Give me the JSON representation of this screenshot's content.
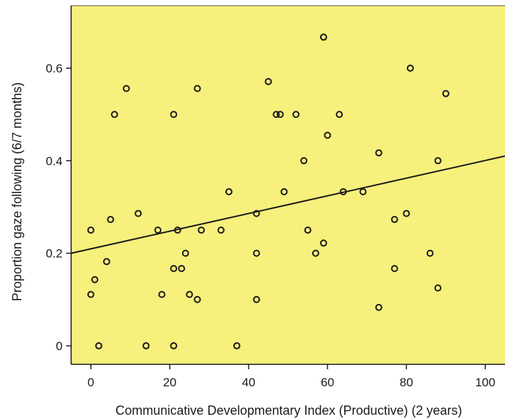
{
  "chart_data": {
    "type": "scatter",
    "title": "",
    "xlabel": "Communicative Developmentary Index (Productive) (2 years)",
    "ylabel": "Proportion gaze following (6/7 months)",
    "xlim": [
      -5,
      105
    ],
    "ylim": [
      -0.04,
      0.735
    ],
    "xticks": [
      0,
      20,
      40,
      60,
      80,
      100
    ],
    "yticks": [
      0,
      0.2,
      0.4,
      0.6
    ],
    "xtick_labels": [
      "0",
      "20",
      "40",
      "60",
      "80",
      "100"
    ],
    "ytick_labels": [
      "0",
      "0.2",
      "0.4",
      "0.6"
    ],
    "grid": false,
    "background_color": "#f7f07c",
    "point_color": "#1a1a1a",
    "points": [
      {
        "x": 0,
        "y": 0.25
      },
      {
        "x": 0,
        "y": 0.111
      },
      {
        "x": 1,
        "y": 0.143
      },
      {
        "x": 2,
        "y": 0
      },
      {
        "x": 4,
        "y": 0.182
      },
      {
        "x": 5,
        "y": 0.273
      },
      {
        "x": 6,
        "y": 0.5
      },
      {
        "x": 9,
        "y": 0.556
      },
      {
        "x": 12,
        "y": 0.286
      },
      {
        "x": 14,
        "y": 0
      },
      {
        "x": 17,
        "y": 0.25
      },
      {
        "x": 18,
        "y": 0.111
      },
      {
        "x": 21,
        "y": 0.5
      },
      {
        "x": 21,
        "y": 0.167
      },
      {
        "x": 21,
        "y": 0
      },
      {
        "x": 22,
        "y": 0.25
      },
      {
        "x": 23,
        "y": 0.167
      },
      {
        "x": 24,
        "y": 0.2
      },
      {
        "x": 25,
        "y": 0.111
      },
      {
        "x": 27,
        "y": 0.556
      },
      {
        "x": 27,
        "y": 0.1
      },
      {
        "x": 28,
        "y": 0.25
      },
      {
        "x": 33,
        "y": 0.25
      },
      {
        "x": 35,
        "y": 0.333
      },
      {
        "x": 37,
        "y": 0
      },
      {
        "x": 42,
        "y": 0.286
      },
      {
        "x": 42,
        "y": 0.2
      },
      {
        "x": 42,
        "y": 0.1
      },
      {
        "x": 45,
        "y": 0.571
      },
      {
        "x": 47,
        "y": 0.5
      },
      {
        "x": 48,
        "y": 0.5
      },
      {
        "x": 49,
        "y": 0.333
      },
      {
        "x": 52,
        "y": 0.5
      },
      {
        "x": 54,
        "y": 0.4
      },
      {
        "x": 55,
        "y": 0.25
      },
      {
        "x": 57,
        "y": 0.2
      },
      {
        "x": 59,
        "y": 0.667
      },
      {
        "x": 59,
        "y": 0.222
      },
      {
        "x": 60,
        "y": 0.455
      },
      {
        "x": 63,
        "y": 0.5
      },
      {
        "x": 64,
        "y": 0.333
      },
      {
        "x": 69,
        "y": 0.333
      },
      {
        "x": 73,
        "y": 0.417
      },
      {
        "x": 73,
        "y": 0.083
      },
      {
        "x": 77,
        "y": 0.273
      },
      {
        "x": 77,
        "y": 0.167
      },
      {
        "x": 80,
        "y": 0.286
      },
      {
        "x": 81,
        "y": 0.6
      },
      {
        "x": 86,
        "y": 0.2
      },
      {
        "x": 88,
        "y": 0.4
      },
      {
        "x": 88,
        "y": 0.125
      },
      {
        "x": 90,
        "y": 0.545
      }
    ],
    "fit_line": {
      "x": [
        -5,
        105
      ],
      "y": [
        0.2,
        0.41
      ]
    }
  }
}
